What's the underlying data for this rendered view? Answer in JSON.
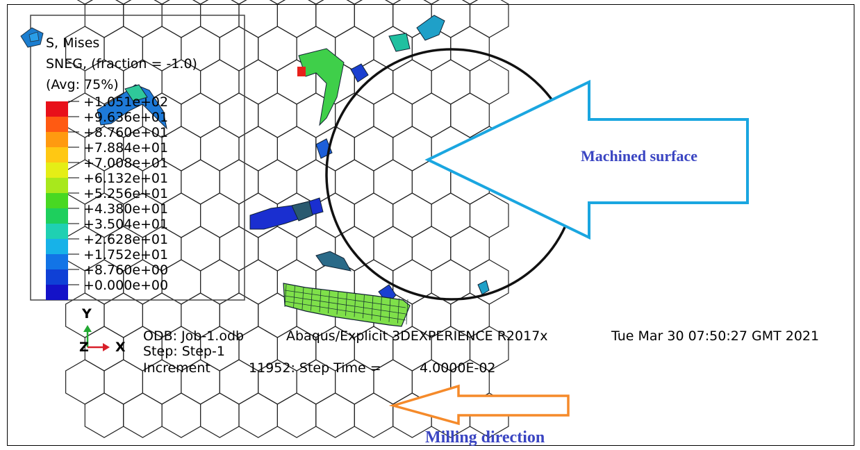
{
  "legend": {
    "title_lines": [
      "S, Mises",
      "SNEG, (fraction = -1.0)",
      "(Avg: 75%)"
    ],
    "values": [
      "+1.051e+02",
      "+9.636e+01",
      "+8.760e+01",
      "+7.884e+01",
      "+7.008e+01",
      "+6.132e+01",
      "+5.256e+01",
      "+4.380e+01",
      "+3.504e+01",
      "+2.628e+01",
      "+1.752e+01",
      "+8.760e+00",
      "+0.000e+00"
    ],
    "colors": [
      "#e8101a",
      "#ff5a12",
      "#ff9a10",
      "#ffc813",
      "#e5ee16",
      "#a8e81c",
      "#48d822",
      "#1ecf5d",
      "#1fd0b2",
      "#17b2e8",
      "#1274e6",
      "#0f40d6",
      "#1412c8"
    ]
  },
  "triad": {
    "y_label": "Y",
    "z_label": "Z",
    "x_label": "X"
  },
  "info": {
    "odb": "ODB: Job-1.odb",
    "solver": "Abaqus/Explicit 3DEXPERIENCE R2017x",
    "date": "Tue Mar 30 07:50:27 GMT 2021",
    "step": "Step: Step-1",
    "increment_label": "Increment",
    "increment_value": "11952: Step Time =",
    "step_time": "4.0000E-02"
  },
  "annotations": {
    "machined_surface": "Machined surface",
    "milling_direction": "Milling direction"
  },
  "colors": {
    "arrow_blue": "#1aa6e0",
    "arrow_orange": "#f58a2a",
    "annotation_text": "#3a45c2"
  }
}
